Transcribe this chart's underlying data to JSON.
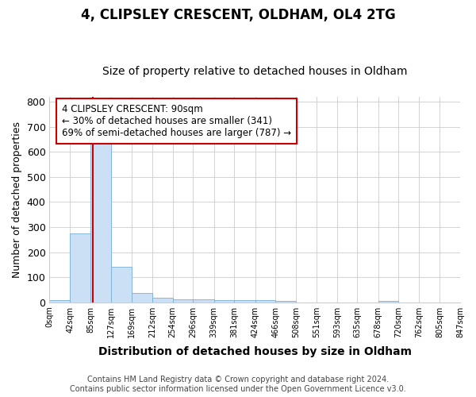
{
  "title1": "4, CLIPSLEY CRESCENT, OLDHAM, OL4 2TG",
  "title2": "Size of property relative to detached houses in Oldham",
  "xlabel": "Distribution of detached houses by size in Oldham",
  "ylabel": "Number of detached properties",
  "footnote": "Contains HM Land Registry data © Crown copyright and database right 2024.\nContains public sector information licensed under the Open Government Licence v3.0.",
  "bin_edges": [
    0,
    42,
    85,
    127,
    169,
    212,
    254,
    296,
    339,
    381,
    424,
    466,
    508,
    551,
    593,
    635,
    678,
    720,
    762,
    805,
    847
  ],
  "bar_values": [
    8,
    275,
    645,
    140,
    38,
    18,
    12,
    10,
    8,
    8,
    8,
    5,
    0,
    0,
    0,
    0,
    6,
    0,
    0,
    0
  ],
  "bar_color": "#cce0f5",
  "bar_edgecolor": "#7aafd4",
  "property_size": 90,
  "vline_color": "#cc0000",
  "annotation_line1": "4 CLIPSLEY CRESCENT: 90sqm",
  "annotation_line2": "← 30% of detached houses are smaller (341)",
  "annotation_line3": "69% of semi-detached houses are larger (787) →",
  "annotation_box_facecolor": "#ffffff",
  "annotation_box_edgecolor": "#cc0000",
  "ylim": [
    0,
    820
  ],
  "yticks": [
    0,
    100,
    200,
    300,
    400,
    500,
    600,
    700,
    800
  ],
  "grid_color": "#cccccc",
  "background_color": "#ffffff",
  "fig_background_color": "#ffffff",
  "tick_labels": [
    "0sqm",
    "42sqm",
    "85sqm",
    "127sqm",
    "169sqm",
    "212sqm",
    "254sqm",
    "296sqm",
    "339sqm",
    "381sqm",
    "424sqm",
    "466sqm",
    "508sqm",
    "551sqm",
    "593sqm",
    "635sqm",
    "678sqm",
    "720sqm",
    "762sqm",
    "805sqm",
    "847sqm"
  ],
  "title1_fontsize": 12,
  "title2_fontsize": 10,
  "xlabel_fontsize": 10,
  "ylabel_fontsize": 9,
  "footnote_fontsize": 7,
  "annot_fontsize": 8.5
}
